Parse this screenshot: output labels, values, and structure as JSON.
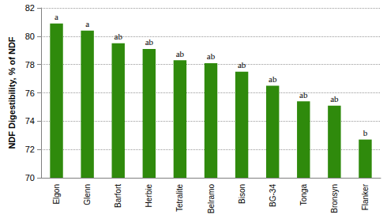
{
  "chart_data": {
    "type": "bar",
    "y_label": "NDF Digestibility, % of NDF",
    "categories": [
      "Elgon",
      "Glenn",
      "Barfort",
      "Herbie",
      "Tetralite",
      "Belramo",
      "Bison",
      "BG-34",
      "Tonga",
      "Bronsyn",
      "Flanker"
    ],
    "values": [
      80.9,
      80.4,
      79.5,
      79.1,
      78.3,
      78.1,
      77.5,
      76.5,
      75.4,
      75.1,
      72.7
    ],
    "annotations": [
      "a",
      "a",
      "ab",
      "ab",
      "ab",
      "ab",
      "ab",
      "ab",
      "ab",
      "ab",
      "b"
    ],
    "color": "#2f8a0c",
    "ylim": [
      70,
      82
    ],
    "yticks": [
      70,
      72,
      74,
      76,
      78,
      80,
      82
    ],
    "grid": true
  }
}
